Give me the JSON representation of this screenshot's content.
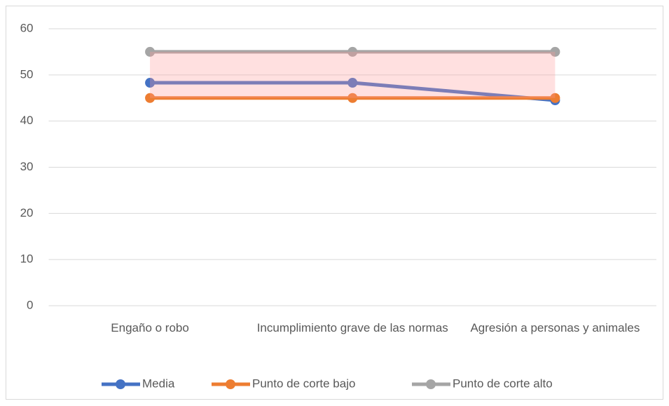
{
  "chart_data": {
    "type": "line",
    "categories": [
      "Engaño o robo",
      "Incumplimiento grave de las normas",
      "Agresión a personas y animales"
    ],
    "series": [
      {
        "name": "Media",
        "color": "#4472c4",
        "values": [
          48.3,
          48.3,
          44.5
        ]
      },
      {
        "name": "Punto de corte bajo",
        "color": "#ed7d31",
        "values": [
          45,
          45,
          45
        ]
      },
      {
        "name": "Punto de corte alto",
        "color": "#a5a5a5",
        "values": [
          55,
          55,
          55
        ]
      }
    ],
    "band_color": "#ff9999",
    "ylim": [
      0,
      60
    ],
    "yticks": [
      0,
      10,
      20,
      30,
      40,
      50,
      60
    ],
    "grid": true,
    "legend": "bottom"
  }
}
